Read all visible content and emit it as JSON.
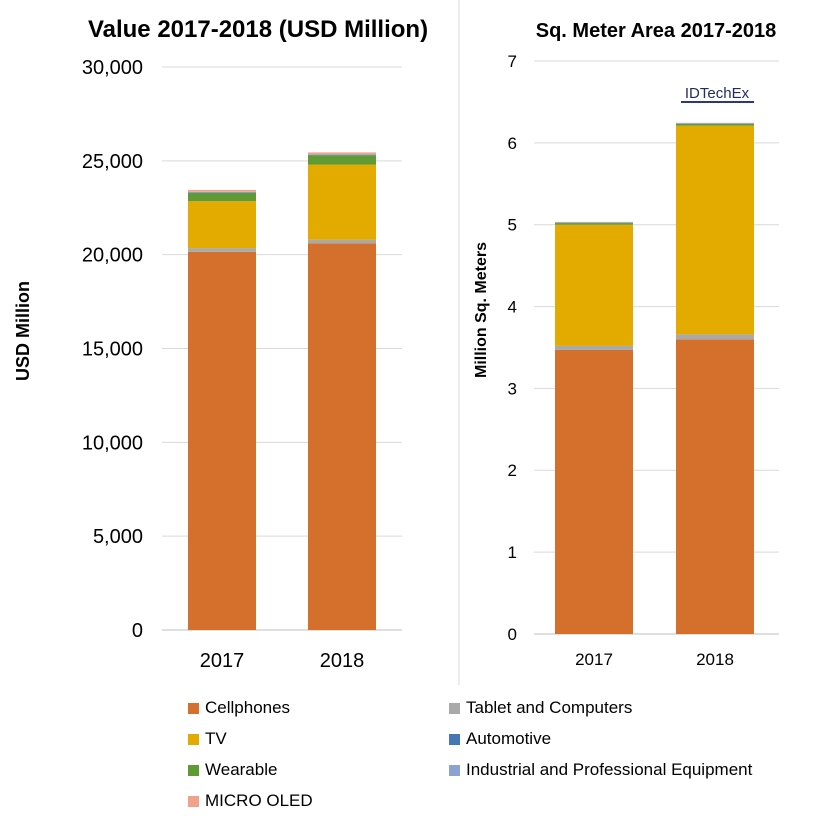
{
  "colors": {
    "Cellphones": "#d4702c",
    "Tablet and Computers": "#a9a9a9",
    "TV": "#e3aa00",
    "Automotive": "#4577b5",
    "Wearable": "#5f9a35",
    "Industrial and Professional Equipment": "#8ea2d1",
    "MICRO OLED": "#f0a38a"
  },
  "watermark": "IDTechEx",
  "legend": [
    {
      "name": "Cellphones"
    },
    {
      "name": "Tablet and Computers"
    },
    {
      "name": "TV"
    },
    {
      "name": "Automotive"
    },
    {
      "name": "Wearable"
    },
    {
      "name": "Industrial and Professional Equipment"
    },
    {
      "name": "MICRO OLED"
    }
  ],
  "chart_data": [
    {
      "type": "bar",
      "stacked": true,
      "title": "Value 2017-2018 (USD Million)",
      "ylabel": "USD Million",
      "xlabel": "",
      "categories": [
        "2017",
        "2018"
      ],
      "ylim": [
        0,
        30000
      ],
      "yticks": [
        0,
        5000,
        10000,
        15000,
        20000,
        25000,
        30000
      ],
      "ytick_labels": [
        "0",
        "5,000",
        "10,000",
        "15,000",
        "20,000",
        "25,000",
        "30,000"
      ],
      "grid": true,
      "legend_position": "bottom",
      "series": [
        {
          "name": "Cellphones",
          "values": [
            20150,
            20600
          ]
        },
        {
          "name": "Tablet and Computers",
          "values": [
            200,
            200
          ]
        },
        {
          "name": "TV",
          "values": [
            2500,
            4000
          ]
        },
        {
          "name": "Wearable",
          "values": [
            450,
            500
          ]
        },
        {
          "name": "Automotive",
          "values": [
            30,
            30
          ]
        },
        {
          "name": "Industrial and Professional Equipment",
          "values": [
            20,
            20
          ]
        },
        {
          "name": "MICRO OLED",
          "values": [
            100,
            100
          ]
        }
      ]
    },
    {
      "type": "bar",
      "stacked": true,
      "title": "Sq. Meter Area 2017-2018",
      "ylabel": "Million Sq. Meters",
      "xlabel": "",
      "categories": [
        "2017",
        "2018"
      ],
      "ylim": [
        0,
        7
      ],
      "yticks": [
        0,
        1,
        2,
        3,
        4,
        5,
        6,
        7
      ],
      "ytick_labels": [
        "0",
        "1",
        "2",
        "3",
        "4",
        "5",
        "6",
        "7"
      ],
      "grid": true,
      "legend_position": "bottom",
      "series": [
        {
          "name": "Cellphones",
          "values": [
            3.47,
            3.6
          ]
        },
        {
          "name": "Tablet and Computers",
          "values": [
            0.05,
            0.06
          ]
        },
        {
          "name": "TV",
          "values": [
            1.48,
            2.55
          ]
        },
        {
          "name": "Wearable",
          "values": [
            0.02,
            0.02
          ]
        },
        {
          "name": "Automotive",
          "values": [
            0.005,
            0.005
          ]
        },
        {
          "name": "Industrial and Professional Equipment",
          "values": [
            0.005,
            0.005
          ]
        },
        {
          "name": "MICRO OLED",
          "values": [
            0.005,
            0.005
          ]
        }
      ]
    }
  ]
}
